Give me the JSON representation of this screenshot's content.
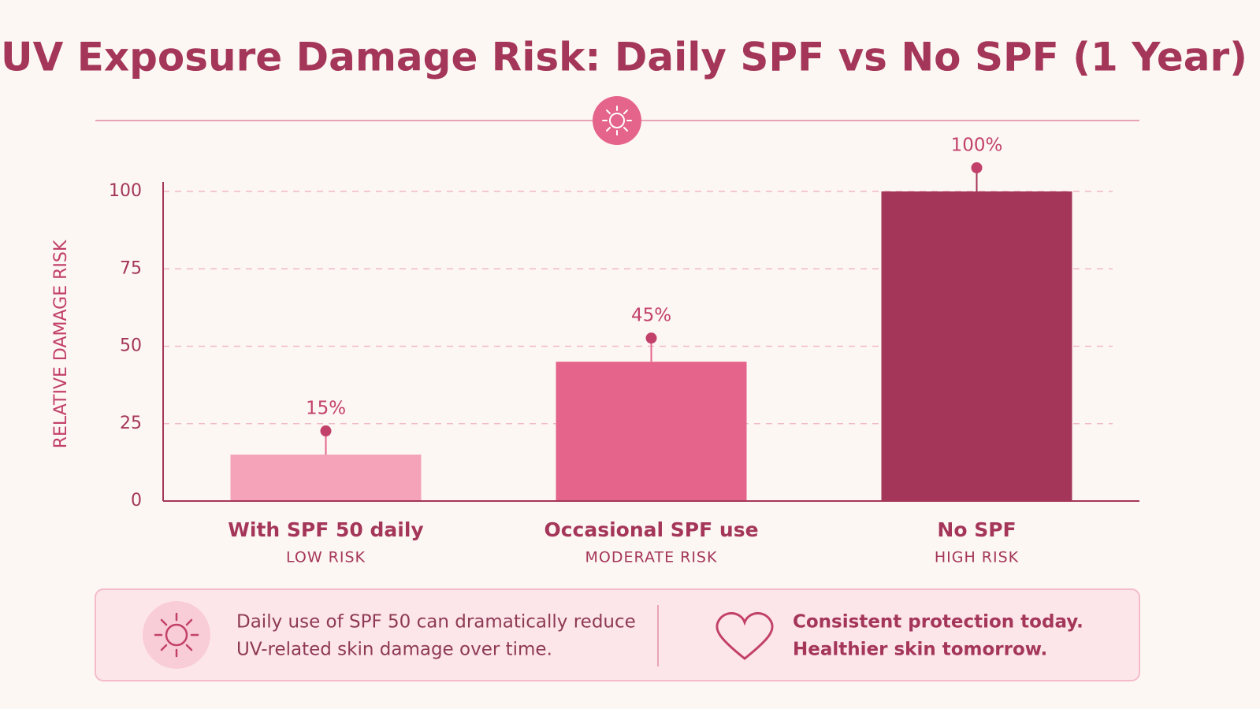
{
  "chart_data": {
    "type": "bar",
    "title": "UV Exposure Damage Risk: Daily SPF vs No SPF (1 Year)",
    "y_label": "RELATIVE DAMAGE RISK",
    "categories": [
      "With SPF 50 daily",
      "Occasional SPF use",
      "No SPF"
    ],
    "sublabels": [
      "LOW RISK",
      "MODERATE RISK",
      "HIGH RISK"
    ],
    "values": [
      15,
      45,
      100
    ],
    "value_labels": [
      "15%",
      "45%",
      "100%"
    ],
    "colors": [
      "#f4a3b8",
      "#e5648b",
      "#a4365a"
    ],
    "ylim": [
      0,
      100
    ],
    "yticks": [
      0,
      25,
      50,
      75,
      100
    ],
    "grid": true,
    "footer": {
      "left": [
        "Daily use of SPF 50 can dramatically reduce",
        "UV-related skin damage over time."
      ],
      "right": [
        "Consistent protection today.",
        "Healthier skin tomorrow."
      ]
    }
  }
}
